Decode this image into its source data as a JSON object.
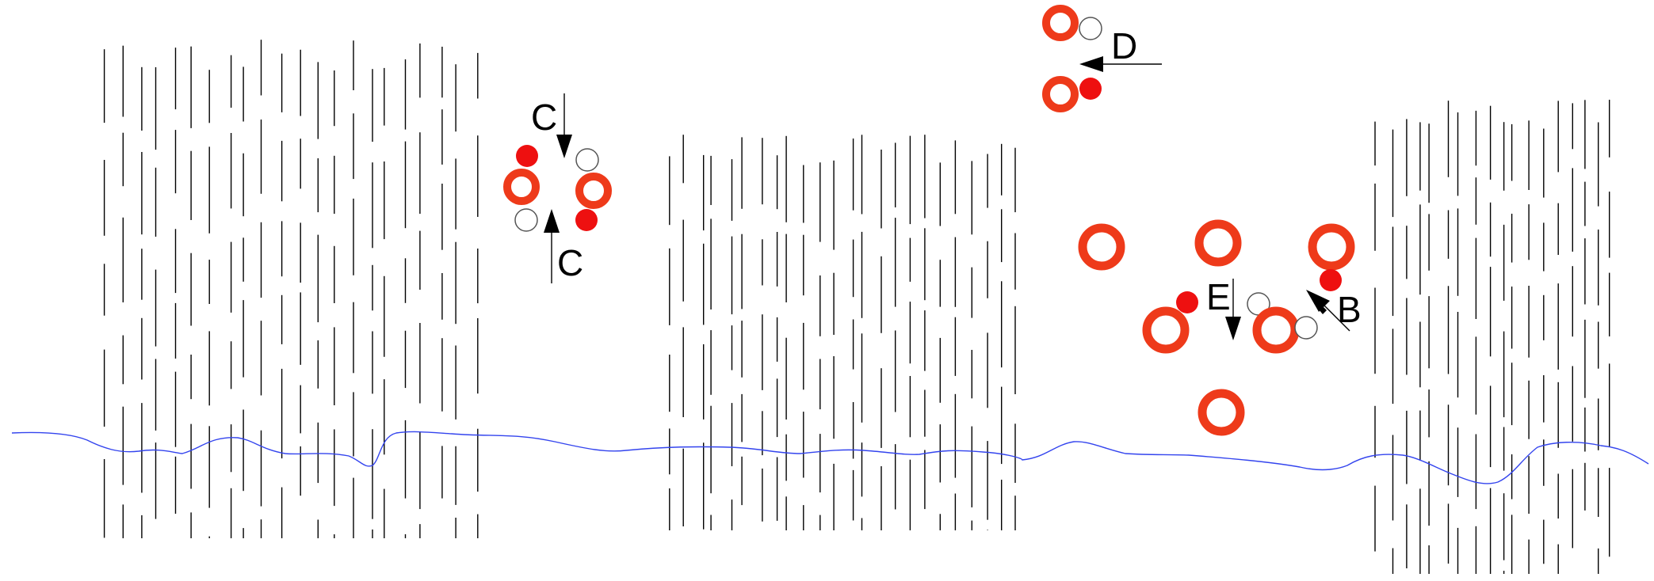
{
  "colors": {
    "background": "#ffffff",
    "ring": "#ee3a1a",
    "dot_red": "#ee1010",
    "dot_white_stroke": "#555555",
    "line": "#000000",
    "water": "#3344ee"
  },
  "labels": {
    "c_top": "C",
    "c_bottom": "C",
    "d": "D",
    "e": "E",
    "b": "B"
  },
  "icons": {
    "ring": "orange-ring-icon",
    "red_dot": "red-dot-icon",
    "white_dot": "white-dot-icon",
    "arrow": "arrow-icon"
  }
}
